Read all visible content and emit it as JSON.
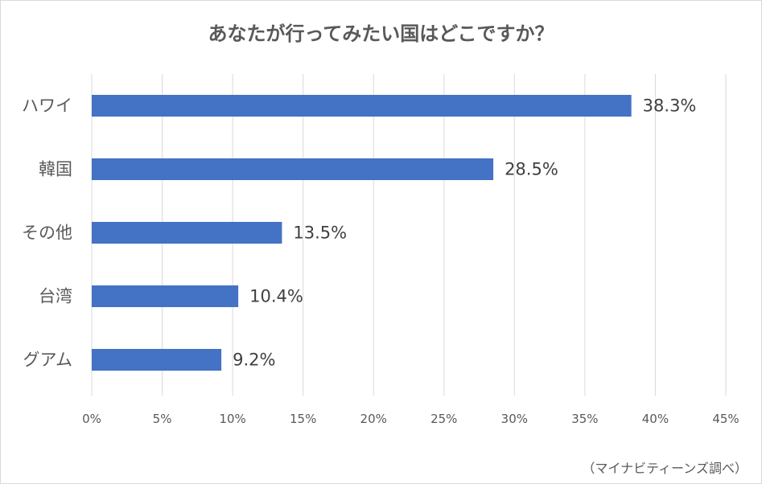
{
  "chart_data": {
    "type": "bar",
    "orientation": "horizontal",
    "title": "あなたが行ってみたい国はどこですか？",
    "categories": [
      "ハワイ",
      "韓国",
      "その他",
      "台湾",
      "グアム"
    ],
    "values": [
      38.3,
      28.5,
      13.5,
      10.4,
      9.2
    ],
    "value_labels": [
      "38.3%",
      "28.5%",
      "13.5%",
      "10.4%",
      "9.2%"
    ],
    "xlim": [
      0,
      45
    ],
    "x_ticks": [
      0,
      5,
      10,
      15,
      20,
      25,
      30,
      35,
      40,
      45
    ],
    "x_tick_labels": [
      "0%",
      "5%",
      "10%",
      "15%",
      "20%",
      "25%",
      "30%",
      "35%",
      "40%",
      "45%"
    ],
    "grid": true,
    "bar_color": "#4472c4",
    "grid_color": "#d9d9d9"
  },
  "source_note": "（マイナビティーンズ調べ）"
}
